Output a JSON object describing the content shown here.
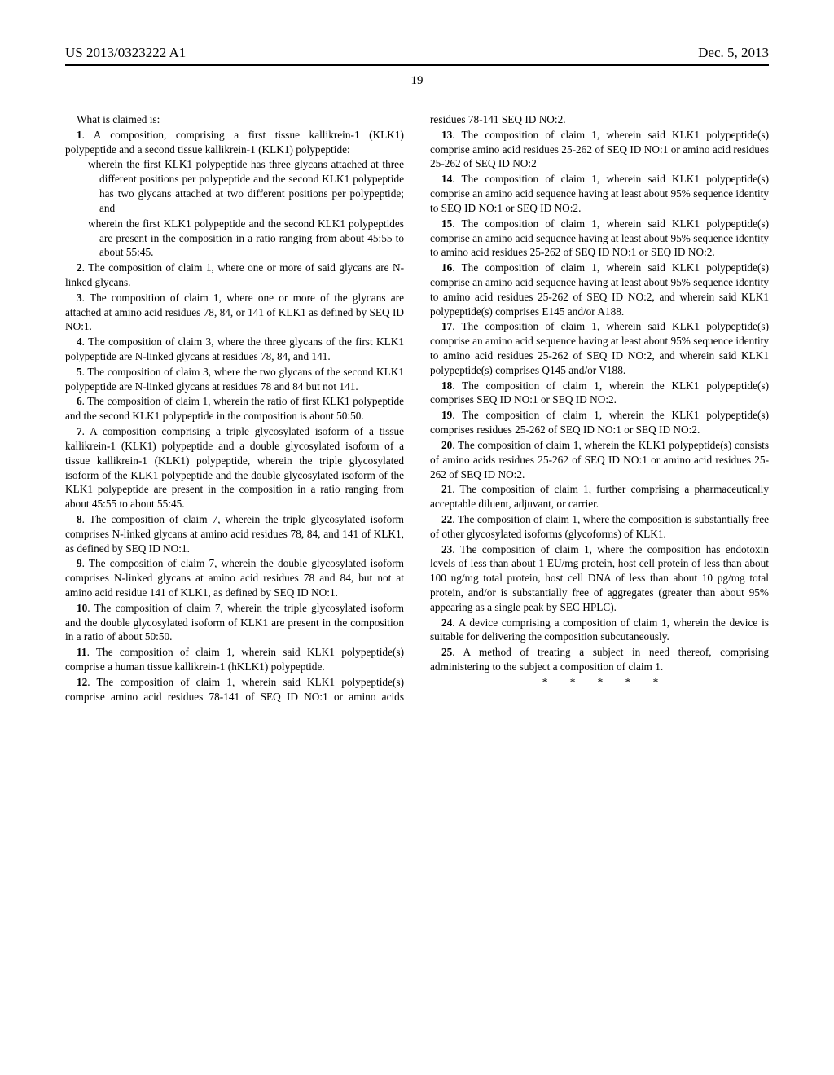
{
  "header": {
    "publication_number": "US 2013/0323222 A1",
    "date": "Dec. 5, 2013",
    "page_number": "19"
  },
  "intro": "What is claimed is:",
  "claims": [
    {
      "num": "1",
      "text": ". A composition, comprising a first tissue kallikrein-1 (KLK1) polypeptide and a second tissue kallikrein-1 (KLK1) polypeptide:",
      "sub": [
        "wherein the first KLK1 polypeptide has three glycans attached at three different positions per polypeptide and the second KLK1 polypeptide has two glycans attached at two different positions per polypeptide; and",
        "wherein the first KLK1 polypeptide and the second KLK1 polypeptides are present in the composition in a ratio ranging from about 45:55 to about 55:45."
      ]
    },
    {
      "num": "2",
      "text": ". The composition of claim 1, where one or more of said glycans are N-linked glycans."
    },
    {
      "num": "3",
      "text": ". The composition of claim 1, where one or more of the glycans are attached at amino acid residues 78, 84, or 141 of KLK1 as defined by SEQ ID NO:1."
    },
    {
      "num": "4",
      "text": ". The composition of claim 3, where the three glycans of the first KLK1 polypeptide are N-linked glycans at residues 78, 84, and 141."
    },
    {
      "num": "5",
      "text": ". The composition of claim 3, where the two glycans of the second KLK1 polypeptide are N-linked glycans at residues 78 and 84 but not 141."
    },
    {
      "num": "6",
      "text": ". The composition of claim 1, wherein the ratio of first KLK1 polypeptide and the second KLK1 polypeptide in the composition is about 50:50."
    },
    {
      "num": "7",
      "text": ". A composition comprising a triple glycosylated isoform of a tissue kallikrein-1 (KLK1) polypeptide and a double glycosylated isoform of a tissue kallikrein-1 (KLK1) polypeptide, wherein the triple glycosylated isoform of the KLK1 polypeptide and the double glycosylated isoform of the KLK1 polypeptide are present in the composition in a ratio ranging from about 45:55 to about 55:45."
    },
    {
      "num": "8",
      "text": ". The composition of claim 7, wherein the triple glycosylated isoform comprises N-linked glycans at amino acid residues 78, 84, and 141 of KLK1, as defined by SEQ ID NO:1."
    },
    {
      "num": "9",
      "text": ". The composition of claim 7, wherein the double glycosylated isoform comprises N-linked glycans at amino acid residues 78 and 84, but not at amino acid residue 141 of KLK1, as defined by SEQ ID NO:1."
    },
    {
      "num": "10",
      "text": ". The composition of claim 7, wherein the triple glycosylated isoform and the double glycosylated isoform of KLK1 are present in the composition in a ratio of about 50:50."
    },
    {
      "num": "11",
      "text": ". The composition of claim 1, wherein said KLK1 polypeptide(s) comprise a human tissue kallikrein-1 (hKLK1) polypeptide."
    },
    {
      "num": "12",
      "text": ". The composition of claim 1, wherein said KLK1 polypeptide(s) comprise amino acid residues 78-141 of SEQ ID NO:1 or amino acids residues 78-141 SEQ ID NO:2."
    },
    {
      "num": "13",
      "text": ". The composition of claim 1, wherein said KLK1 polypeptide(s) comprise amino acid residues 25-262 of SEQ ID NO:1 or amino acid residues 25-262 of SEQ ID NO:2"
    },
    {
      "num": "14",
      "text": ". The composition of claim 1, wherein said KLK1 polypeptide(s) comprise an amino acid sequence having at least about 95% sequence identity to SEQ ID NO:1 or SEQ ID NO:2."
    },
    {
      "num": "15",
      "text": ". The composition of claim 1, wherein said KLK1 polypeptide(s) comprise an amino acid sequence having at least about 95% sequence identity to amino acid residues 25-262 of SEQ ID NO:1 or SEQ ID NO:2."
    },
    {
      "num": "16",
      "text": ". The composition of claim 1, wherein said KLK1 polypeptide(s) comprise an amino acid sequence having at least about 95% sequence identity to amino acid residues 25-262 of SEQ ID NO:2, and wherein said KLK1 polypeptide(s) comprises E145 and/or A188."
    },
    {
      "num": "17",
      "text": ". The composition of claim 1, wherein said KLK1 polypeptide(s) comprise an amino acid sequence having at least about 95% sequence identity to amino acid residues 25-262 of SEQ ID NO:2, and wherein said KLK1 polypeptide(s) comprises Q145 and/or V188."
    },
    {
      "num": "18",
      "text": ". The composition of claim 1, wherein the KLK1 polypeptide(s) comprises SEQ ID NO:1 or SEQ ID NO:2."
    },
    {
      "num": "19",
      "text": ". The composition of claim 1, wherein the KLK1 polypeptide(s) comprises residues 25-262 of SEQ ID NO:1 or SEQ ID NO:2."
    },
    {
      "num": "20",
      "text": ". The composition of claim 1, wherein the KLK1 polypeptide(s) consists of amino acids residues 25-262 of SEQ ID NO:1 or amino acid residues 25-262 of SEQ ID NO:2."
    },
    {
      "num": "21",
      "text": ". The composition of claim 1, further comprising a pharmaceutically acceptable diluent, adjuvant, or carrier."
    },
    {
      "num": "22",
      "text": ". The composition of claim 1, where the composition is substantially free of other glycosylated isoforms (glycoforms) of KLK1."
    },
    {
      "num": "23",
      "text": ". The composition of claim 1, where the composition has endotoxin levels of less than about 1 EU/mg protein, host cell protein of less than about 100 ng/mg total protein, host cell DNA of less than about 10 pg/mg total protein, and/or is substantially free of aggregates (greater than about 95% appearing as a single peak by SEC HPLC)."
    },
    {
      "num": "24",
      "text": ". A device comprising a composition of claim 1, wherein the device is suitable for delivering the composition subcutaneously."
    },
    {
      "num": "25",
      "text": ". A method of treating a subject in need thereof, comprising administering to the subject a composition of claim 1."
    }
  ],
  "end_marks": "* * * * *"
}
